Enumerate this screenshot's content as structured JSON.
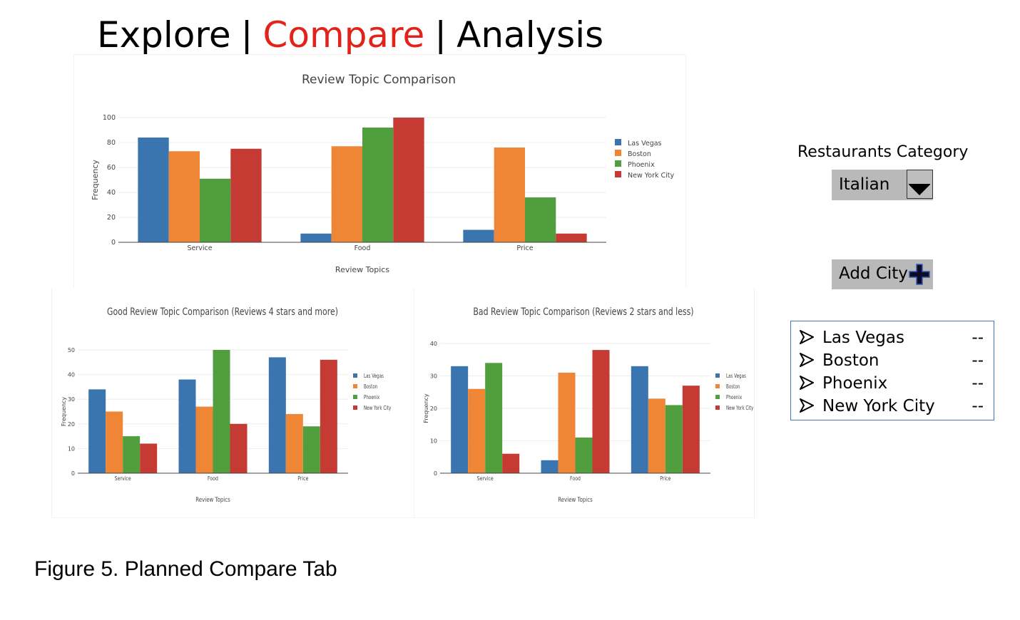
{
  "nav": {
    "tabs": [
      {
        "label": "Explore",
        "active": false
      },
      {
        "label": "Compare",
        "active": true
      },
      {
        "label": "Analysis",
        "active": false
      }
    ],
    "separator": "|",
    "active_color": "#e2231a"
  },
  "controls": {
    "category_label": "Restaurants Category",
    "category_value": "Italian",
    "dropdown_icon": "chevron-down-icon",
    "add_city_label": "Add City",
    "add_icon": "plus-icon",
    "cities": [
      {
        "name": "Las Vegas",
        "value": "--"
      },
      {
        "name": "Boston",
        "value": "--"
      },
      {
        "name": "Phoenix",
        "value": "--"
      },
      {
        "name": "New York City",
        "value": "--"
      }
    ],
    "bullet_icon": "arrow-bullet-icon",
    "list_border_color": "#4472c4"
  },
  "caption": "Figure 5. Planned Compare Tab",
  "colors": {
    "Las Vegas": "#3a75b0",
    "Boston": "#ef8636",
    "Phoenix": "#519e3e",
    "New York City": "#c53a32"
  },
  "chart_data": [
    {
      "id": "main",
      "type": "bar",
      "title": "Review Topic Comparison",
      "xlabel": "Review Topics",
      "ylabel": "Frequency",
      "categories": [
        "Service",
        "Food",
        "Price"
      ],
      "ylim": [
        0,
        100
      ],
      "yticks": [
        0,
        20,
        40,
        60,
        80,
        100
      ],
      "grid": true,
      "legend": "right",
      "series": [
        {
          "name": "Las Vegas",
          "values": [
            84,
            7,
            10
          ]
        },
        {
          "name": "Boston",
          "values": [
            73,
            77,
            76
          ]
        },
        {
          "name": "Phoenix",
          "values": [
            51,
            92,
            36
          ]
        },
        {
          "name": "New York City",
          "values": [
            75,
            100,
            7
          ]
        }
      ]
    },
    {
      "id": "good",
      "type": "bar",
      "title": "Good Review Topic Comparison (Reviews 4 stars and more)",
      "xlabel": "Review Topics",
      "ylabel": "Frequency",
      "categories": [
        "Service",
        "Food",
        "Price"
      ],
      "ylim": [
        0,
        50
      ],
      "yticks": [
        0,
        10,
        20,
        30,
        40,
        50
      ],
      "grid": true,
      "legend": "right",
      "series": [
        {
          "name": "Las Vegas",
          "values": [
            34,
            38,
            47
          ]
        },
        {
          "name": "Boston",
          "values": [
            25,
            27,
            24
          ]
        },
        {
          "name": "Phoenix",
          "values": [
            15,
            50,
            19
          ]
        },
        {
          "name": "New York City",
          "values": [
            12,
            20,
            46
          ]
        }
      ]
    },
    {
      "id": "bad",
      "type": "bar",
      "title": "Bad Review Topic Comparison (Reviews 2 stars and less)",
      "xlabel": "Review Topics",
      "ylabel": "Frequency",
      "categories": [
        "Service",
        "Food",
        "Price"
      ],
      "ylim": [
        0,
        40
      ],
      "yticks": [
        0,
        10,
        20,
        30,
        40
      ],
      "grid": true,
      "legend": "right",
      "series": [
        {
          "name": "Las Vegas",
          "values": [
            33,
            4,
            33
          ]
        },
        {
          "name": "Boston",
          "values": [
            26,
            31,
            23
          ]
        },
        {
          "name": "Phoenix",
          "values": [
            34,
            11,
            21
          ]
        },
        {
          "name": "New York City",
          "values": [
            6,
            38,
            27
          ]
        }
      ]
    }
  ]
}
